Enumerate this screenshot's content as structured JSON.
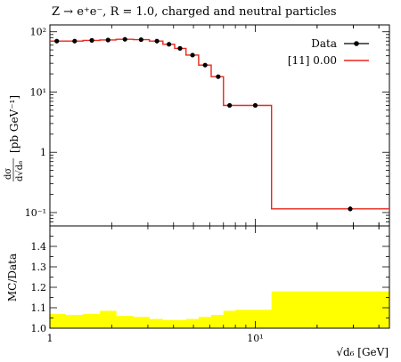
{
  "chart_data": [
    {
      "type": "line",
      "panel": "main",
      "title": "Z → e⁺e⁻, R = 1.0, charged and neutral particles",
      "ylabel": "dσ/d√d₆ [pb GeV⁻¹]",
      "ylabel_frac_num": "dσ",
      "ylabel_frac_den": "d√d₆",
      "ylabel_units": "[pb GeV⁻¹]",
      "x_scale": "log",
      "y_scale": "log",
      "xlim": [
        1,
        45
      ],
      "ylim": [
        0.06,
        130
      ],
      "y_ticks": [
        {
          "value": 100,
          "label": "10²"
        },
        {
          "value": 10,
          "label": "10¹"
        },
        {
          "value": 1,
          "label": "1"
        },
        {
          "value": 0.1,
          "label": "10⁻¹"
        }
      ],
      "legend_position": "top-right",
      "series": [
        {
          "name": "Data",
          "style": "points",
          "color": "#000000",
          "x": [
            1.08,
            1.32,
            1.6,
            1.92,
            2.32,
            2.78,
            3.32,
            3.8,
            4.3,
            4.95,
            5.7,
            6.6,
            7.5,
            10.0,
            29.0
          ],
          "y": [
            70,
            70,
            72,
            73,
            75,
            74,
            70,
            62,
            53,
            41,
            28,
            18,
            6,
            6,
            0.115
          ],
          "err_low": [
            0,
            0,
            0,
            0,
            0,
            0,
            0,
            0,
            0,
            0,
            0,
            0,
            0,
            0,
            0.01
          ],
          "err_high": [
            0,
            0,
            0,
            0,
            0,
            0,
            0,
            0,
            0,
            0,
            0,
            0,
            0,
            0,
            0.012
          ]
        },
        {
          "name": "[11] 0.00",
          "style": "step",
          "color": "#e8271b",
          "bin_edges": [
            1.0,
            1.19,
            1.45,
            1.75,
            2.1,
            2.55,
            3.05,
            3.55,
            4.05,
            4.6,
            5.3,
            6.1,
            7.0,
            8.0,
            12.0,
            45.0
          ],
          "y": [
            70,
            70,
            72,
            73,
            75,
            74,
            70,
            62,
            53,
            41,
            28,
            18,
            6,
            6,
            0.115
          ]
        }
      ]
    },
    {
      "type": "area",
      "panel": "ratio",
      "ylabel": "MC/Data",
      "xlabel": "√d₆ [GeV]",
      "x_scale": "log",
      "xlim": [
        1,
        45
      ],
      "ylim": [
        1.0,
        1.5
      ],
      "y_ticks": [
        {
          "value": 1.0,
          "label": "1.0"
        },
        {
          "value": 1.1,
          "label": "1.1"
        },
        {
          "value": 1.2,
          "label": "1.2"
        },
        {
          "value": 1.3,
          "label": "1.3"
        },
        {
          "value": 1.4,
          "label": "1.4"
        }
      ],
      "x_ticks": [
        {
          "value": 1,
          "label": "1"
        },
        {
          "value": 10,
          "label": "10¹"
        }
      ],
      "band_color": "#ffff00",
      "reference_line": 1.0,
      "bin_edges": [
        1.0,
        1.19,
        1.45,
        1.75,
        2.1,
        2.55,
        3.05,
        3.55,
        4.05,
        4.6,
        5.3,
        6.1,
        7.0,
        8.0,
        12.0,
        45.0
      ],
      "band_upper": [
        1.07,
        1.065,
        1.07,
        1.085,
        1.06,
        1.055,
        1.045,
        1.04,
        1.04,
        1.045,
        1.055,
        1.065,
        1.085,
        1.09,
        1.18
      ]
    }
  ]
}
